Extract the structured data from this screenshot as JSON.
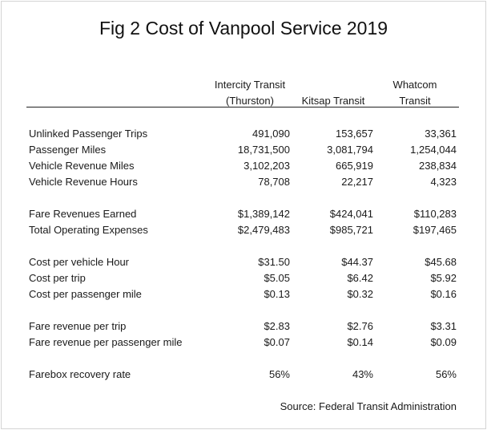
{
  "title": "Fig 2 Cost of Vanpool Service 2019",
  "columns": [
    {
      "line1": "Intercity Transit",
      "line2": "(Thurston)"
    },
    {
      "line1": "",
      "line2": "Kitsap Transit"
    },
    {
      "line1": "Whatcom",
      "line2": "Transit"
    }
  ],
  "rows": [
    {
      "label": "Unlinked Passenger Trips",
      "values": [
        "491,090",
        "153,657",
        "33,361"
      ]
    },
    {
      "label": "Passenger Miles",
      "values": [
        "18,731,500",
        "3,081,794",
        "1,254,044"
      ]
    },
    {
      "label": "Vehicle Revenue Miles",
      "values": [
        "3,102,203",
        "665,919",
        "238,834"
      ]
    },
    {
      "label": "Vehicle Revenue Hours",
      "values": [
        "78,708",
        "22,217",
        "4,323"
      ]
    },
    {
      "label": "Fare Revenues Earned",
      "values": [
        "$1,389,142",
        "$424,041",
        "$110,283"
      ]
    },
    {
      "label": "Total Operating Expenses",
      "values": [
        "$2,479,483",
        "$985,721",
        "$197,465"
      ]
    },
    {
      "label": "Cost per vehicle  Hour",
      "values": [
        "$31.50",
        "$44.37",
        "$45.68"
      ]
    },
    {
      "label": "Cost per trip",
      "values": [
        "$5.05",
        "$6.42",
        "$5.92"
      ]
    },
    {
      "label": "Cost per passenger mile",
      "values": [
        "$0.13",
        "$0.32",
        "$0.16"
      ]
    },
    {
      "label": "Fare revenue per trip",
      "values": [
        "$2.83",
        "$2.76",
        "$3.31"
      ]
    },
    {
      "label": "Fare revenue per passenger mile",
      "values": [
        "$0.07",
        "$0.14",
        "$0.09"
      ]
    },
    {
      "label": "Farebox recovery rate",
      "values": [
        "56%",
        "43%",
        "56%"
      ]
    }
  ],
  "source": "Source: Federal Transit Administration"
}
